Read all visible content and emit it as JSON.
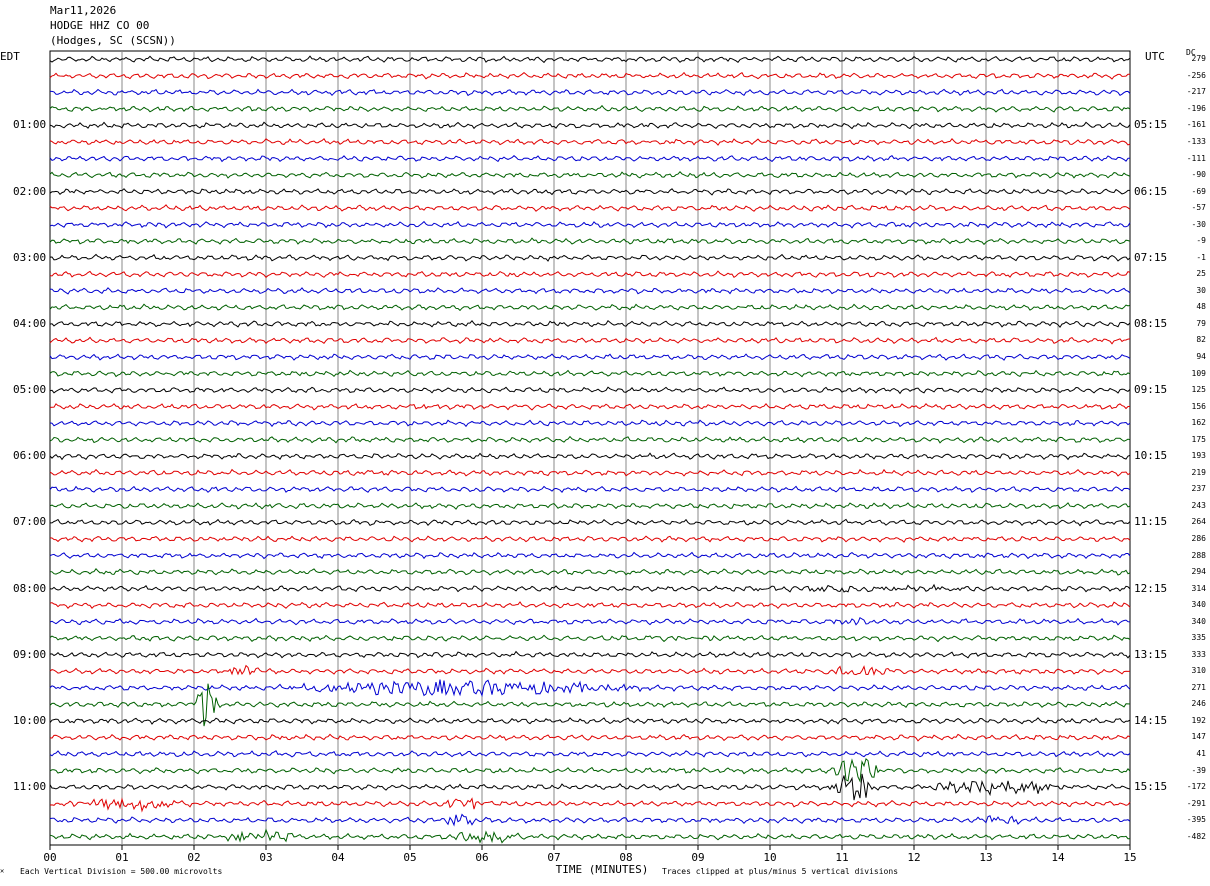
{
  "header": {
    "date": "Mar11,2026",
    "station": "HODGE HHZ CO 00",
    "location": "(Hodges, SC (SCSN))"
  },
  "left_tz": "EDT",
  "right_tz": "UTC",
  "dc_label": "DC",
  "footer": {
    "scale_mark": "✕",
    "scale": "Each Vertical Division =  500.00 microvolts",
    "x_title": "TIME (MINUTES)",
    "clip": "Traces clipped at plus/minus 5 vertical divisions"
  },
  "chart_data": {
    "type": "line",
    "title": "",
    "xlabel": "TIME (MINUTES)",
    "ylabel": "",
    "xlim": [
      0,
      15
    ],
    "x_ticks": [
      "00",
      "01",
      "02",
      "03",
      "04",
      "05",
      "06",
      "07",
      "08",
      "09",
      "10",
      "11",
      "12",
      "13",
      "14",
      "15"
    ],
    "grid": true,
    "trace_colors": [
      "#000000",
      "#e00000",
      "#0000d0",
      "#006000"
    ],
    "trace_count": 48,
    "left_time_labels": [
      "01:00",
      "02:00",
      "03:00",
      "04:00",
      "05:00",
      "06:00",
      "07:00",
      "08:00",
      "09:00",
      "10:00",
      "11:00"
    ],
    "right_time_labels": [
      "05:15",
      "06:15",
      "07:15",
      "08:15",
      "09:15",
      "10:15",
      "11:15",
      "12:15",
      "13:15",
      "14:15",
      "15:15"
    ],
    "dc_offsets": [
      "279",
      "-256",
      "-217",
      "-196",
      "-161",
      "-133",
      "-111",
      "-90",
      "-69",
      "-57",
      "-30",
      "-9",
      "-1",
      "25",
      "30",
      "48",
      "79",
      "82",
      "94",
      "109",
      "125",
      "156",
      "162",
      "175",
      "193",
      "219",
      "237",
      "243",
      "264",
      "286",
      "288",
      "294",
      "314",
      "340",
      "340",
      "335",
      "333",
      "310",
      "271",
      "246",
      "192",
      "147",
      "41",
      "-39",
      "-172",
      "-291",
      "-395",
      "-482"
    ],
    "events": [
      {
        "trace": 22,
        "start": 4.9,
        "end": 5.5,
        "amp": 1.0
      },
      {
        "trace": 33,
        "start": 8.9,
        "end": 13.5,
        "amp": 1.5
      },
      {
        "trace": 35,
        "start": 10.8,
        "end": 11.4,
        "amp": 2.0
      },
      {
        "trace": 36,
        "start": 8.0,
        "end": 9.6,
        "amp": 1.0
      },
      {
        "trace": 38,
        "start": 2.4,
        "end": 3.0,
        "amp": 3.5
      },
      {
        "trace": 38,
        "start": 10.6,
        "end": 11.8,
        "amp": 3.0
      },
      {
        "trace": 39,
        "start": 3.0,
        "end": 8.5,
        "amp": 4.5
      },
      {
        "trace": 40,
        "start": 2.0,
        "end": 2.35,
        "amp": 18.0
      },
      {
        "trace": 44,
        "start": 10.8,
        "end": 11.6,
        "amp": 8.0
      },
      {
        "trace": 45,
        "start": 10.8,
        "end": 11.5,
        "amp": 10.0
      },
      {
        "trace": 45,
        "start": 12.0,
        "end": 14.4,
        "amp": 4.0
      },
      {
        "trace": 46,
        "start": 0.2,
        "end": 2.0,
        "amp": 3.5
      },
      {
        "trace": 46,
        "start": 5.3,
        "end": 6.3,
        "amp": 3.0
      },
      {
        "trace": 47,
        "start": 5.4,
        "end": 6.0,
        "amp": 4.0
      },
      {
        "trace": 47,
        "start": 12.8,
        "end": 13.5,
        "amp": 3.0
      },
      {
        "trace": 48,
        "start": 2.2,
        "end": 3.6,
        "amp": 3.5
      },
      {
        "trace": 48,
        "start": 5.5,
        "end": 6.6,
        "amp": 3.5
      }
    ]
  }
}
